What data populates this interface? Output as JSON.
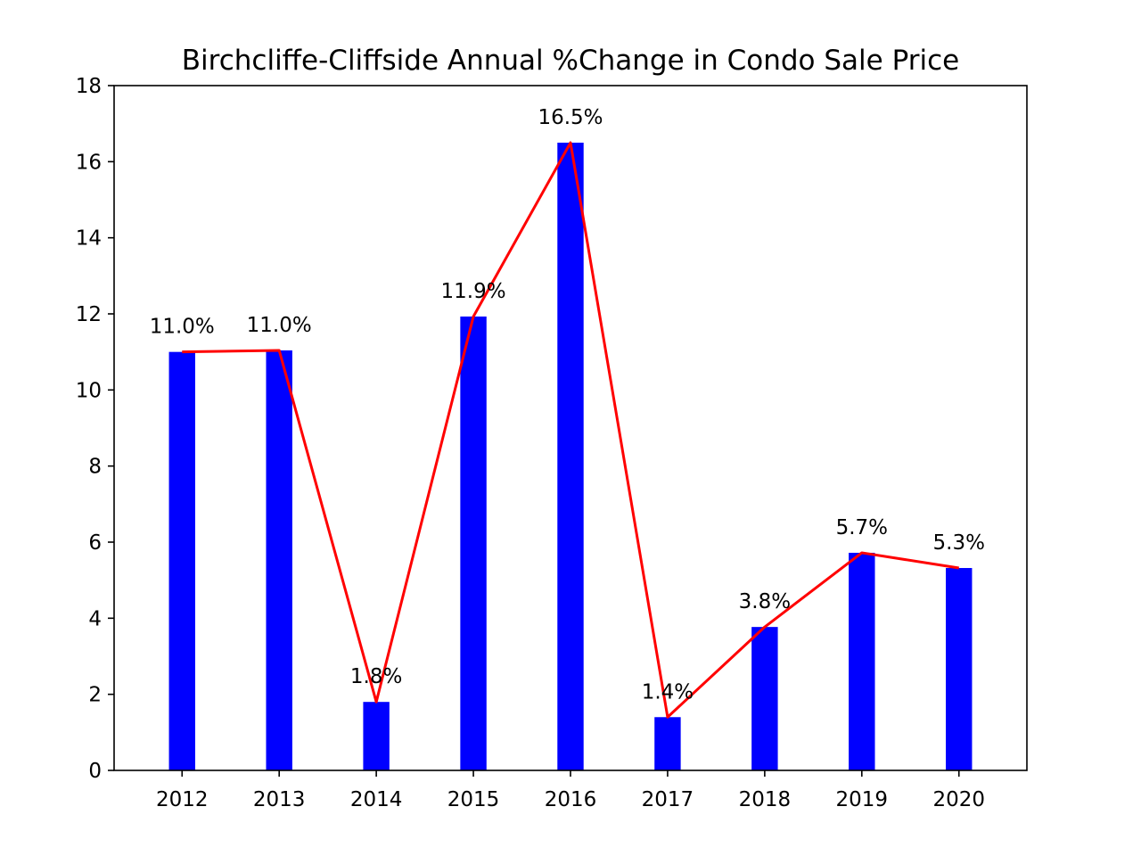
{
  "chart_data": {
    "type": "bar",
    "title": "Birchcliffe-Cliffside Annual %Change in Condo Sale Price",
    "xlabel": "",
    "ylabel": "",
    "categories": [
      "2012",
      "2013",
      "2014",
      "2015",
      "2016",
      "2017",
      "2018",
      "2019",
      "2020"
    ],
    "series": [
      {
        "type": "bar",
        "color": "#0000ff",
        "values": [
          11.0,
          11.04,
          1.8,
          11.93,
          16.5,
          1.4,
          3.77,
          5.72,
          5.32
        ]
      },
      {
        "type": "line",
        "color": "#ff0000",
        "values": [
          11.0,
          11.04,
          1.8,
          11.93,
          16.5,
          1.4,
          3.77,
          5.72,
          5.32
        ]
      }
    ],
    "data_labels": [
      "11.0%",
      "11.0%",
      "1.8%",
      "11.9%",
      "16.5%",
      "1.4%",
      "3.8%",
      "5.7%",
      "5.3%"
    ],
    "ylim": [
      0,
      18
    ],
    "yticks": [
      "0",
      "2",
      "4",
      "6",
      "8",
      "10",
      "12",
      "14",
      "16",
      "18"
    ],
    "grid": false,
    "legend": false
  }
}
